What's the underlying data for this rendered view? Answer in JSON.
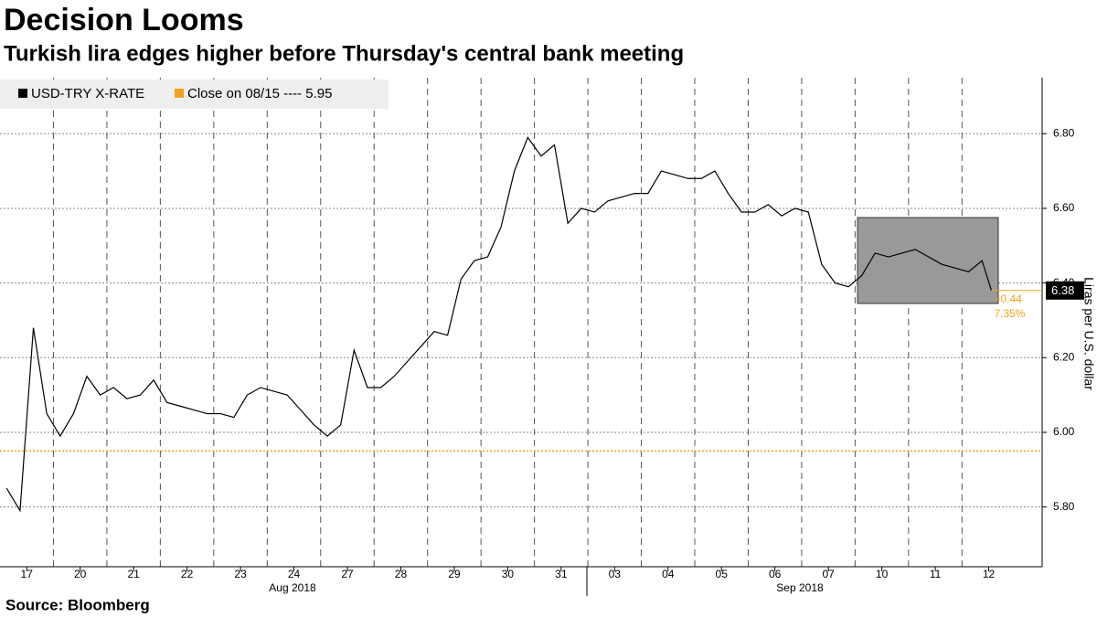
{
  "chart_data": {
    "type": "line",
    "title": "Decision Looms",
    "subtitle": "Turkish lira edges higher before Thursday's central bank meeting",
    "y_axis_label": "Liras per U.S. dollar",
    "source": "Source: Bloomberg",
    "month_labels": [
      "Aug 2018",
      "Sep 2018"
    ],
    "xlim": [
      -0.5,
      19
    ],
    "ylim": [
      5.64,
      6.95
    ],
    "grid": true,
    "xticks": [
      {
        "value": 0,
        "label": "17"
      },
      {
        "value": 1,
        "label": "20"
      },
      {
        "value": 2,
        "label": "21"
      },
      {
        "value": 3,
        "label": "22"
      },
      {
        "value": 4,
        "label": "23"
      },
      {
        "value": 5,
        "label": "24"
      },
      {
        "value": 6,
        "label": "27"
      },
      {
        "value": 7,
        "label": "28"
      },
      {
        "value": 8,
        "label": "29"
      },
      {
        "value": 9,
        "label": "30"
      },
      {
        "value": 10,
        "label": "31"
      },
      {
        "value": 11,
        "label": "03"
      },
      {
        "value": 12,
        "label": "04"
      },
      {
        "value": 13,
        "label": "05"
      },
      {
        "value": 14,
        "label": "06"
      },
      {
        "value": 15,
        "label": "07"
      },
      {
        "value": 16,
        "label": "10"
      },
      {
        "value": 17,
        "label": "11"
      },
      {
        "value": 18,
        "label": "12"
      }
    ],
    "yticks": [
      {
        "value": 5.8,
        "label": "5.80"
      },
      {
        "value": 6.0,
        "label": "6.00"
      },
      {
        "value": 6.2,
        "label": "6.20"
      },
      {
        "value": 6.4,
        "label": "6.40"
      },
      {
        "value": 6.6,
        "label": "6.60"
      },
      {
        "value": 6.8,
        "label": "6.80"
      }
    ],
    "series": [
      {
        "name": "USD-TRY X-RATE",
        "color": "#000000",
        "x": [
          -0.375,
          -0.125,
          0.125,
          0.375,
          0.625,
          0.875,
          1.125,
          1.375,
          1.625,
          1.875,
          2.125,
          2.375,
          2.625,
          2.875,
          3.125,
          3.375,
          3.625,
          3.875,
          4.125,
          4.375,
          4.625,
          4.875,
          5.125,
          5.375,
          5.625,
          5.875,
          6.125,
          6.375,
          6.625,
          6.875,
          7.125,
          7.375,
          7.625,
          7.875,
          8.125,
          8.375,
          8.625,
          8.875,
          9.125,
          9.375,
          9.625,
          9.875,
          10.125,
          10.375,
          10.625,
          10.875,
          11.125,
          11.375,
          11.625,
          11.875,
          12.125,
          12.375,
          12.625,
          12.875,
          13.125,
          13.375,
          13.625,
          13.875,
          14.125,
          14.375,
          14.625,
          14.875,
          15.125,
          15.375,
          15.625,
          15.875,
          16.125,
          16.375,
          16.625,
          16.875,
          17.125,
          17.375,
          17.625,
          17.875,
          18.05
        ],
        "values": [
          5.85,
          5.79,
          6.28,
          6.05,
          5.99,
          6.05,
          6.15,
          6.1,
          6.12,
          6.09,
          6.1,
          6.14,
          6.08,
          6.07,
          6.06,
          6.05,
          6.05,
          6.04,
          6.1,
          6.12,
          6.11,
          6.1,
          6.06,
          6.02,
          5.99,
          6.02,
          6.22,
          6.12,
          6.12,
          6.15,
          6.19,
          6.23,
          6.27,
          6.26,
          6.41,
          6.46,
          6.47,
          6.55,
          6.7,
          6.79,
          6.74,
          6.77,
          6.56,
          6.6,
          6.59,
          6.62,
          6.63,
          6.64,
          6.64,
          6.7,
          6.69,
          6.68,
          6.68,
          6.7,
          6.64,
          6.59,
          6.59,
          6.61,
          6.58,
          6.6,
          6.59,
          6.45,
          6.4,
          6.39,
          6.42,
          6.48,
          6.47,
          6.48,
          6.49,
          6.47,
          6.45,
          6.44,
          6.43,
          6.46,
          6.38
        ]
      }
    ],
    "reference_line": {
      "name": "Close on 08/15 ---- 5.95",
      "value": 5.95,
      "color": "#f0a020"
    },
    "annotations": [
      "+0.44",
      "7.35%"
    ]
  }
}
